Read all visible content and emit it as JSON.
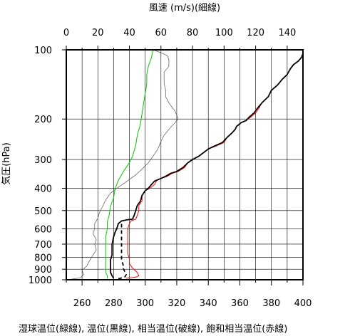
{
  "chart_data": {
    "type": "line",
    "top_axis": {
      "label": "風速 (m/s)(細線)",
      "range": [
        0,
        150
      ],
      "ticks": [
        0,
        20,
        40,
        60,
        80,
        100,
        120,
        140
      ]
    },
    "bottom_axis": {
      "label": "湿球温位(緑線), 温位(黒線), 相当温位(破線), 飽和相当温位(赤線)",
      "range": [
        250,
        400
      ],
      "ticks": [
        260,
        280,
        300,
        320,
        340,
        360,
        380,
        400
      ]
    },
    "y_axis": {
      "label": "気圧(hPa)",
      "scale": "log",
      "inverted": true,
      "range": [
        100,
        1000
      ],
      "ticks": [
        100,
        200,
        300,
        400,
        500,
        600,
        700,
        800,
        900,
        1000
      ]
    },
    "grid": true,
    "series": [
      {
        "color": "#555555",
        "style": "thin",
        "axis": "top",
        "points": [
          [
            1,
            1000
          ],
          [
            9,
            980
          ],
          [
            11,
            950
          ],
          [
            10,
            910
          ],
          [
            13,
            870
          ],
          [
            15,
            820
          ],
          [
            17,
            780
          ],
          [
            19,
            740
          ],
          [
            18,
            700
          ],
          [
            19,
            670
          ],
          [
            18,
            650
          ],
          [
            17,
            630
          ],
          [
            18,
            600
          ],
          [
            18,
            570
          ],
          [
            20,
            540
          ],
          [
            21,
            510
          ],
          [
            23,
            480
          ],
          [
            25,
            450
          ],
          [
            28,
            420
          ],
          [
            32,
            400
          ],
          [
            38,
            375
          ],
          [
            44,
            350
          ],
          [
            48,
            330
          ],
          [
            52,
            310
          ],
          [
            55,
            290
          ],
          [
            58,
            270
          ],
          [
            60,
            250
          ],
          [
            62,
            235
          ],
          [
            66,
            218
          ],
          [
            71,
            200
          ],
          [
            69,
            185
          ],
          [
            65,
            170
          ],
          [
            63,
            160
          ],
          [
            63,
            150
          ],
          [
            62,
            140
          ],
          [
            62,
            132
          ],
          [
            62,
            125
          ],
          [
            65,
            118
          ],
          [
            65,
            110
          ],
          [
            64,
            106
          ],
          [
            60,
            103
          ],
          [
            55,
            100
          ]
        ]
      },
      {
        "color": "#00cc00",
        "style": "solid",
        "axis": "bottom",
        "points": [
          [
            276,
            985
          ],
          [
            276,
            960
          ],
          [
            275,
            930
          ],
          [
            275,
            900
          ],
          [
            275,
            870
          ],
          [
            275,
            820
          ],
          [
            275,
            780
          ],
          [
            275,
            740
          ],
          [
            275,
            700
          ],
          [
            275,
            650
          ],
          [
            276,
            600
          ],
          [
            276,
            560
          ],
          [
            277,
            530
          ],
          [
            278,
            480
          ],
          [
            280,
            440
          ],
          [
            281,
            400
          ],
          [
            283,
            370
          ],
          [
            286,
            340
          ],
          [
            290,
            310
          ],
          [
            292,
            290
          ],
          [
            294,
            260
          ],
          [
            295,
            235
          ],
          [
            297,
            210
          ],
          [
            298,
            190
          ],
          [
            299,
            170
          ],
          [
            300,
            155
          ],
          [
            301,
            140
          ],
          [
            301,
            128
          ],
          [
            302,
            118
          ],
          [
            304,
            108
          ],
          [
            305,
            100
          ]
        ]
      },
      {
        "color": "#ff0000",
        "style": "solid",
        "axis": "bottom",
        "points": [
          [
            288,
            985
          ],
          [
            294,
            975
          ],
          [
            296,
            960
          ],
          [
            295,
            930
          ],
          [
            292,
            890
          ],
          [
            290,
            850
          ],
          [
            290,
            810
          ],
          [
            289,
            770
          ],
          [
            289,
            700
          ],
          [
            289,
            650
          ],
          [
            289,
            600
          ],
          [
            290,
            570
          ],
          [
            291,
            555
          ],
          [
            294,
            545
          ],
          [
            295,
            525
          ],
          [
            296,
            500
          ],
          [
            296,
            475
          ],
          [
            298,
            455
          ],
          [
            298,
            430
          ],
          [
            300,
            410
          ],
          [
            303,
            400
          ],
          [
            306,
            385
          ],
          [
            307,
            372
          ],
          [
            309,
            365
          ],
          [
            314,
            355
          ],
          [
            317,
            345
          ],
          [
            321,
            338
          ],
          [
            325,
            325
          ],
          [
            327,
            310
          ],
          [
            330,
            300
          ],
          [
            334,
            290
          ],
          [
            337,
            280
          ],
          [
            340,
            270
          ],
          [
            345,
            262
          ],
          [
            350,
            253
          ],
          [
            352,
            240
          ],
          [
            355,
            230
          ],
          [
            357,
            222
          ],
          [
            358,
            215
          ],
          [
            361,
            207
          ],
          [
            364,
            203
          ],
          [
            367,
            196
          ],
          [
            370,
            188
          ],
          [
            372,
            180
          ],
          [
            374,
            170
          ],
          [
            378,
            160
          ],
          [
            380,
            150
          ],
          [
            384,
            142
          ],
          [
            387,
            134
          ],
          [
            390,
            128
          ],
          [
            392,
            121
          ],
          [
            394,
            116
          ],
          [
            397,
            112
          ],
          [
            399,
            108
          ],
          [
            400,
            105
          ]
        ]
      },
      {
        "color": "#000000",
        "style": "thick",
        "axis": "bottom",
        "points": [
          [
            280,
            985
          ],
          [
            279,
            960
          ],
          [
            278,
            930
          ],
          [
            278,
            900
          ],
          [
            278,
            870
          ],
          [
            278,
            820
          ],
          [
            279,
            780
          ],
          [
            279,
            740
          ],
          [
            279,
            700
          ],
          [
            280,
            650
          ],
          [
            281,
            620
          ],
          [
            282,
            600
          ],
          [
            283,
            570
          ],
          [
            285,
            555
          ],
          [
            289,
            548
          ],
          [
            292,
            545
          ],
          [
            293,
            525
          ],
          [
            294,
            500
          ],
          [
            295,
            475
          ],
          [
            297,
            455
          ],
          [
            298,
            430
          ],
          [
            300,
            410
          ],
          [
            302,
            400
          ],
          [
            304,
            385
          ],
          [
            306,
            372
          ],
          [
            309,
            365
          ],
          [
            313,
            355
          ],
          [
            316,
            345
          ],
          [
            320,
            338
          ],
          [
            324,
            325
          ],
          [
            327,
            310
          ],
          [
            330,
            300
          ],
          [
            334,
            290
          ],
          [
            337,
            280
          ],
          [
            340,
            270
          ],
          [
            344,
            262
          ],
          [
            349,
            253
          ],
          [
            352,
            240
          ],
          [
            355,
            230
          ],
          [
            357,
            222
          ],
          [
            358,
            215
          ],
          [
            361,
            207
          ],
          [
            364,
            203
          ],
          [
            366,
            196
          ],
          [
            369,
            188
          ],
          [
            371,
            180
          ],
          [
            374,
            170
          ],
          [
            378,
            160
          ],
          [
            380,
            150
          ],
          [
            384,
            142
          ],
          [
            387,
            134
          ],
          [
            390,
            128
          ],
          [
            392,
            121
          ],
          [
            394,
            116
          ],
          [
            397,
            112
          ],
          [
            399,
            108
          ],
          [
            400,
            104
          ]
        ]
      },
      {
        "color": "#000000",
        "style": "dashed",
        "axis": "bottom",
        "points": [
          [
            283,
            990
          ],
          [
            287,
            975
          ],
          [
            288,
            950
          ],
          [
            287,
            920
          ],
          [
            286,
            890
          ],
          [
            286,
            860
          ],
          [
            285,
            820
          ],
          [
            285,
            780
          ],
          [
            285,
            740
          ],
          [
            285,
            700
          ],
          [
            285,
            650
          ],
          [
            285,
            600
          ],
          [
            285,
            560
          ]
        ]
      }
    ]
  }
}
